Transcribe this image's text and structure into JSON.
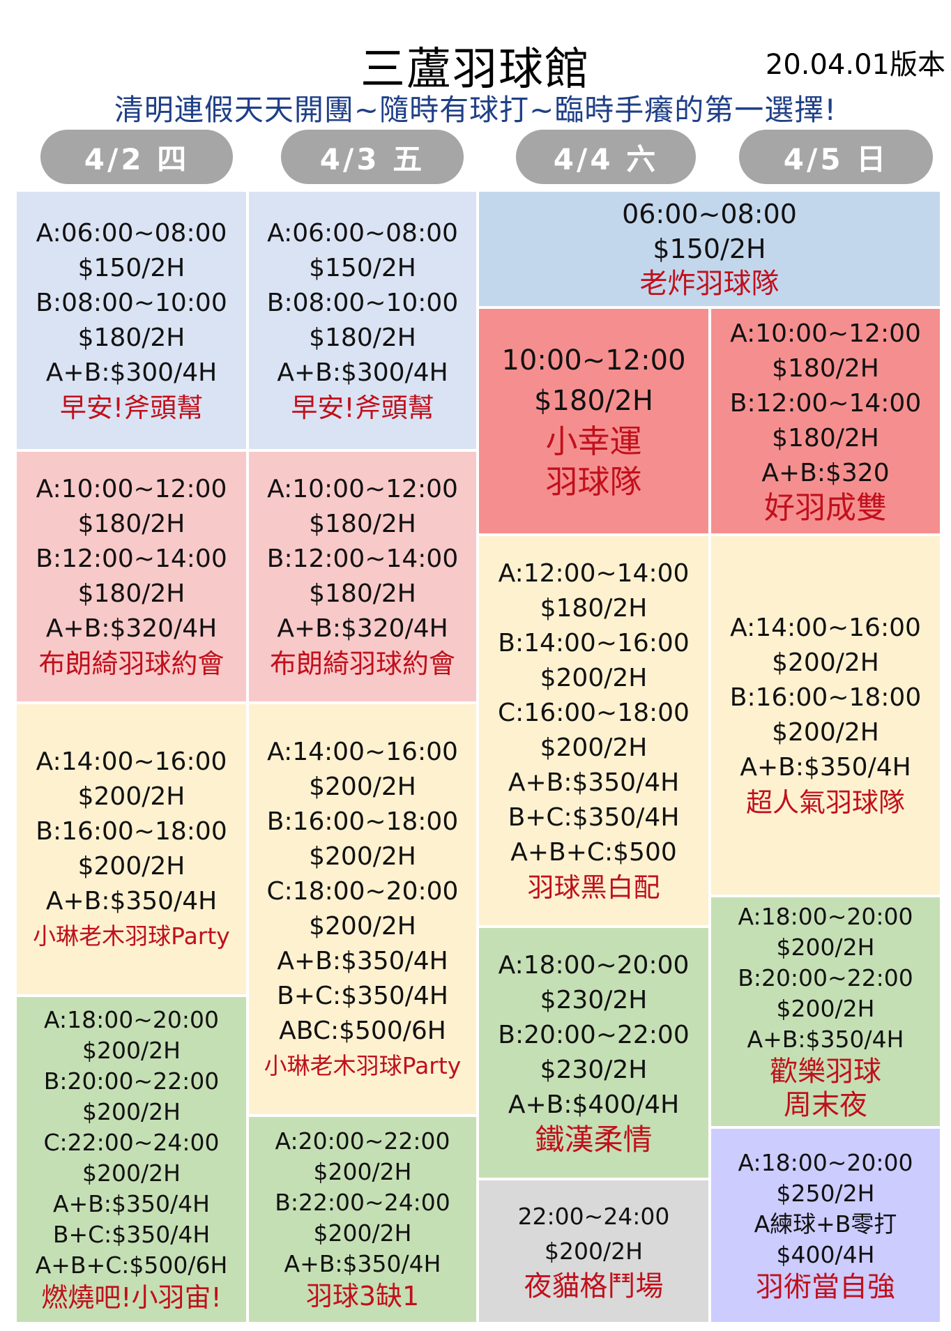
{
  "header": {
    "title": "三蘆羽球館",
    "version": "20.04.01版本",
    "subtitle": "清明連假天天開團~隨時有球打~臨時手癢的第一選擇!"
  },
  "days": [
    "4/2 四",
    "4/3 五",
    "4/4 六",
    "4/5 日"
  ],
  "colors": {
    "header_pill": "#a6a6a6",
    "subtitle": "#1f3f87",
    "team_text": "#c0101c",
    "blue": "#dae3f3",
    "blue_dark": "#c3d7ec",
    "pink": "#f8c9c9",
    "red": "#f58f8f",
    "cream": "#fdf1d0",
    "green": "#c5dfb4",
    "gray": "#d9d9d9",
    "lavender": "#ccccff"
  },
  "sessions": {
    "d1_morning": {
      "lines": [
        "A:06:00~08:00",
        "$150/2H",
        "B:08:00~10:00",
        "$180/2H",
        "A+B:$300/4H"
      ],
      "team": "早安!斧頭幫"
    },
    "d2_morning": {
      "lines": [
        "A:06:00~08:00",
        "$150/2H",
        "B:08:00~10:00",
        "$180/2H",
        "A+B:$300/4H"
      ],
      "team": "早安!斧頭幫"
    },
    "d34_morning": {
      "lines": [
        "06:00~08:00",
        "$150/2H"
      ],
      "team": "老炸羽球隊"
    },
    "d3_late_morning": {
      "lines": [
        "10:00~12:00",
        "$180/2H"
      ],
      "team1": "小幸運",
      "team2": "羽球隊"
    },
    "d4_late_morning": {
      "lines": [
        "A:10:00~12:00",
        "$180/2H",
        "B:12:00~14:00",
        "$180/2H",
        "A+B:$320"
      ],
      "team": "好羽成雙"
    },
    "d1_noon": {
      "lines": [
        "A:10:00~12:00",
        "$180/2H",
        "B:12:00~14:00",
        "$180/2H",
        "A+B:$320/4H"
      ],
      "team": "布朗綺羽球約會"
    },
    "d2_noon": {
      "lines": [
        "A:10:00~12:00",
        "$180/2H",
        "B:12:00~14:00",
        "$180/2H",
        "A+B:$320/4H"
      ],
      "team": "布朗綺羽球約會"
    },
    "d3_afternoon": {
      "lines": [
        "A:12:00~14:00",
        "$180/2H",
        "B:14:00~16:00",
        "$200/2H",
        "C:16:00~18:00",
        "$200/2H",
        "A+B:$350/4H",
        "B+C:$350/4H",
        "A+B+C:$500"
      ],
      "team": "羽球黑白配"
    },
    "d4_afternoon": {
      "lines": [
        "A:14:00~16:00",
        "$200/2H",
        "B:16:00~18:00",
        "$200/2H",
        "A+B:$350/4H"
      ],
      "team": "超人氣羽球隊"
    },
    "d1_afternoon": {
      "lines": [
        "A:14:00~16:00",
        "$200/2H",
        "B:16:00~18:00",
        "$200/2H",
        "A+B:$350/4H"
      ],
      "team": "小琳老木羽球Party"
    },
    "d2_afternoon": {
      "lines": [
        "A:14:00~16:00",
        "$200/2H",
        "B:16:00~18:00",
        "$200/2H",
        "C:18:00~20:00",
        "$200/2H",
        "A+B:$350/4H",
        "B+C:$350/4H",
        "ABC:$500/6H"
      ],
      "team": "小琳老木羽球Party"
    },
    "d1_evening": {
      "lines": [
        "A:18:00~20:00",
        "$200/2H",
        "B:20:00~22:00",
        "$200/2H",
        "C:22:00~24:00",
        "$200/2H",
        "A+B:$350/4H",
        "B+C:$350/4H",
        "A+B+C:$500/6H"
      ],
      "team": "燃燒吧!小羽宙!"
    },
    "d2_evening": {
      "lines": [
        "A:20:00~22:00",
        "$200/2H",
        "B:22:00~24:00",
        "$200/2H",
        "A+B:$350/4H"
      ],
      "team": "羽球3缺1"
    },
    "d3_evening": {
      "lines": [
        "A:18:00~20:00",
        "$230/2H",
        "B:20:00~22:00",
        "$230/2H",
        "A+B:$400/4H"
      ],
      "team": "鐵漢柔情"
    },
    "d3_night": {
      "lines": [
        "22:00~24:00",
        "$200/2H"
      ],
      "team": "夜貓格鬥場"
    },
    "d4_evening": {
      "lines": [
        "A:18:00~20:00",
        "$200/2H",
        "B:20:00~22:00",
        "$200/2H",
        "A+B:$350/4H"
      ],
      "team1": "歡樂羽球",
      "team2": "周末夜"
    },
    "d4_night": {
      "lines": [
        "A:18:00~20:00",
        "$250/2H",
        "A練球+B零打",
        "$400/4H"
      ],
      "team": "羽術當自強"
    }
  }
}
